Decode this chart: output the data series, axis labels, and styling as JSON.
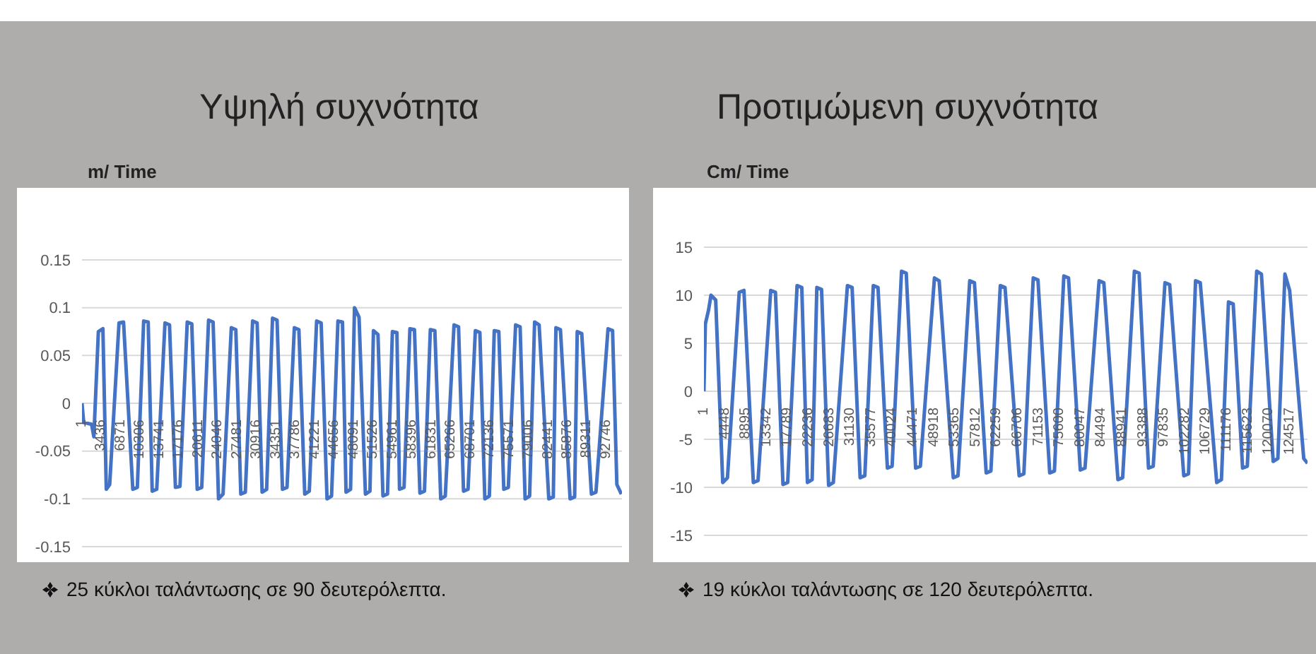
{
  "chart_data": [
    {
      "type": "line",
      "title": "Υψηλή συχνότητα",
      "ylabel": "m/ Time",
      "color": "#4472c4",
      "grid": "y",
      "xlim": [
        1,
        95500
      ],
      "ylim": [
        -0.15,
        0.15
      ],
      "yticks": [
        -0.15,
        -0.1,
        -0.05,
        0,
        0.05,
        0.1,
        0.15
      ],
      "xticks": [
        1,
        3436,
        6871,
        10306,
        13741,
        17176,
        20611,
        24046,
        27481,
        30916,
        34351,
        37786,
        41221,
        44656,
        48091,
        51526,
        54961,
        58396,
        61831,
        65266,
        68701,
        72136,
        75571,
        79006,
        82441,
        85876,
        89311,
        92746
      ],
      "x": [
        1,
        300,
        1700,
        2100,
        2900,
        3700,
        4300,
        4900,
        6550,
        7350,
        8990,
        9790,
        10910,
        11710,
        12420,
        13220,
        14680,
        15480,
        16530,
        17330,
        18620,
        19420,
        20380,
        21180,
        22390,
        23190,
        24150,
        24950,
        26410,
        27210,
        28090,
        28890,
        30180,
        30980,
        31860,
        32660,
        33700,
        34500,
        35460,
        36260,
        37560,
        38360,
        39400,
        40200,
        41500,
        42300,
        43340,
        44140,
        45270,
        46070,
        46700,
        47500,
        48200,
        49000,
        50130,
        50930,
        51550,
        52350,
        53230,
        54030,
        54900,
        55700,
        56160,
        56960,
        58000,
        58800,
        59770,
        60570,
        61610,
        62410,
        63450,
        64250,
        65800,
        66600,
        67480,
        68280,
        69570,
        70370,
        71250,
        72050,
        72920,
        73720,
        74600,
        75400,
        76690,
        77490,
        78370,
        79170,
        80050,
        80850,
        82560,
        83360,
        83820,
        84620,
        86330,
        87130,
        87590,
        88390,
        90100,
        90900,
        93040,
        93840,
        94600,
        95400
      ],
      "values": [
        0,
        -0.02,
        -0.022,
        -0.035,
        0.075,
        0.078,
        -0.09,
        -0.085,
        0.084,
        0.085,
        -0.09,
        -0.088,
        0.086,
        0.085,
        -0.092,
        -0.09,
        0.084,
        0.082,
        -0.088,
        -0.087,
        0.085,
        0.083,
        -0.09,
        -0.088,
        0.087,
        0.085,
        -0.1,
        -0.095,
        0.079,
        0.077,
        -0.095,
        -0.093,
        0.086,
        0.084,
        -0.093,
        -0.09,
        0.089,
        0.087,
        -0.09,
        -0.088,
        0.079,
        0.077,
        -0.095,
        -0.092,
        0.086,
        0.084,
        -0.1,
        -0.097,
        0.086,
        0.085,
        -0.093,
        -0.09,
        0.1,
        0.09,
        -0.095,
        -0.092,
        0.076,
        0.072,
        -0.097,
        -0.095,
        0.075,
        0.074,
        -0.09,
        -0.088,
        0.078,
        0.077,
        -0.094,
        -0.092,
        0.077,
        0.076,
        -0.1,
        -0.097,
        0.082,
        0.08,
        -0.092,
        -0.09,
        0.076,
        0.074,
        -0.1,
        -0.097,
        0.076,
        0.075,
        -0.09,
        -0.088,
        0.082,
        0.08,
        -0.1,
        -0.097,
        0.085,
        0.082,
        -0.1,
        -0.098,
        0.079,
        0.077,
        -0.1,
        -0.098,
        0.075,
        0.073,
        -0.095,
        -0.093,
        0.078,
        0.076,
        -0.085,
        -0.095
      ],
      "annotations": [
        "25 κύκλοι ταλάντωσης σε 90 δευτερόλεπτα."
      ]
    },
    {
      "type": "line",
      "title": "Προτιμώμενη συχνότητα",
      "ylabel": "Cm/ Time",
      "color": "#4472c4",
      "grid": "y",
      "xlim": [
        1,
        128300
      ],
      "ylim": [
        -15,
        15
      ],
      "yticks": [
        -15,
        -10,
        -5,
        0,
        5,
        10,
        15
      ],
      "xticks": [
        1,
        4448,
        8895,
        13342,
        17789,
        22236,
        26683,
        31130,
        35577,
        40024,
        44471,
        48918,
        53365,
        57812,
        62259,
        66706,
        71153,
        75600,
        80047,
        84494,
        88941,
        93388,
        97835,
        102282,
        106729,
        111176,
        115623,
        120070,
        124517
      ],
      "x": [
        1,
        300,
        1000,
        1500,
        2500,
        4000,
        5000,
        7500,
        8500,
        10500,
        11500,
        14200,
        15200,
        16800,
        17800,
        19800,
        20800,
        22000,
        23000,
        24000,
        25000,
        26500,
        27500,
        30500,
        31500,
        33200,
        34200,
        36000,
        37000,
        39000,
        40000,
        42000,
        43000,
        45000,
        46000,
        49000,
        50000,
        53000,
        54000,
        56500,
        57500,
        60000,
        61000,
        63000,
        64000,
        67000,
        68000,
        70000,
        71000,
        73500,
        74500,
        76500,
        77500,
        80000,
        81000,
        84000,
        85000,
        88000,
        89000,
        91500,
        92500,
        94500,
        95500,
        98000,
        99000,
        102000,
        103000,
        104500,
        105500,
        109000,
        110000,
        111500,
        112500,
        114500,
        115500,
        117500,
        118500,
        121000,
        122000,
        123500,
        124500,
        127500,
        128300
      ],
      "values": [
        0,
        7,
        8.5,
        10,
        9.5,
        -9.5,
        -9,
        10.3,
        10.5,
        -9.5,
        -9.3,
        10.5,
        10.3,
        -9.7,
        -9.5,
        11,
        10.8,
        -9.5,
        -9.2,
        10.8,
        10.6,
        -9.8,
        -9.5,
        11,
        10.8,
        -9,
        -8.8,
        11,
        10.8,
        -8,
        -7.8,
        12.5,
        12.3,
        -8,
        -7.8,
        11.8,
        11.5,
        -9,
        -8.8,
        11.5,
        11.3,
        -8.5,
        -8.3,
        11,
        10.8,
        -8.8,
        -8.6,
        11.8,
        11.6,
        -8.5,
        -8.3,
        12,
        11.8,
        -8.2,
        -8,
        11.5,
        11.3,
        -9.2,
        -9,
        12.5,
        12.3,
        -8,
        -7.8,
        11.3,
        11.1,
        -8.8,
        -8.6,
        11.5,
        11.3,
        -9.5,
        -9.2,
        9.3,
        9.1,
        -8,
        -7.8,
        12.5,
        12.2,
        -7.3,
        -7,
        12.2,
        10.5,
        -7,
        -7.5
      ],
      "annotations": [
        "19 κύκλοι ταλάντωσης σε 120 δευτερόλεπτα."
      ]
    }
  ]
}
